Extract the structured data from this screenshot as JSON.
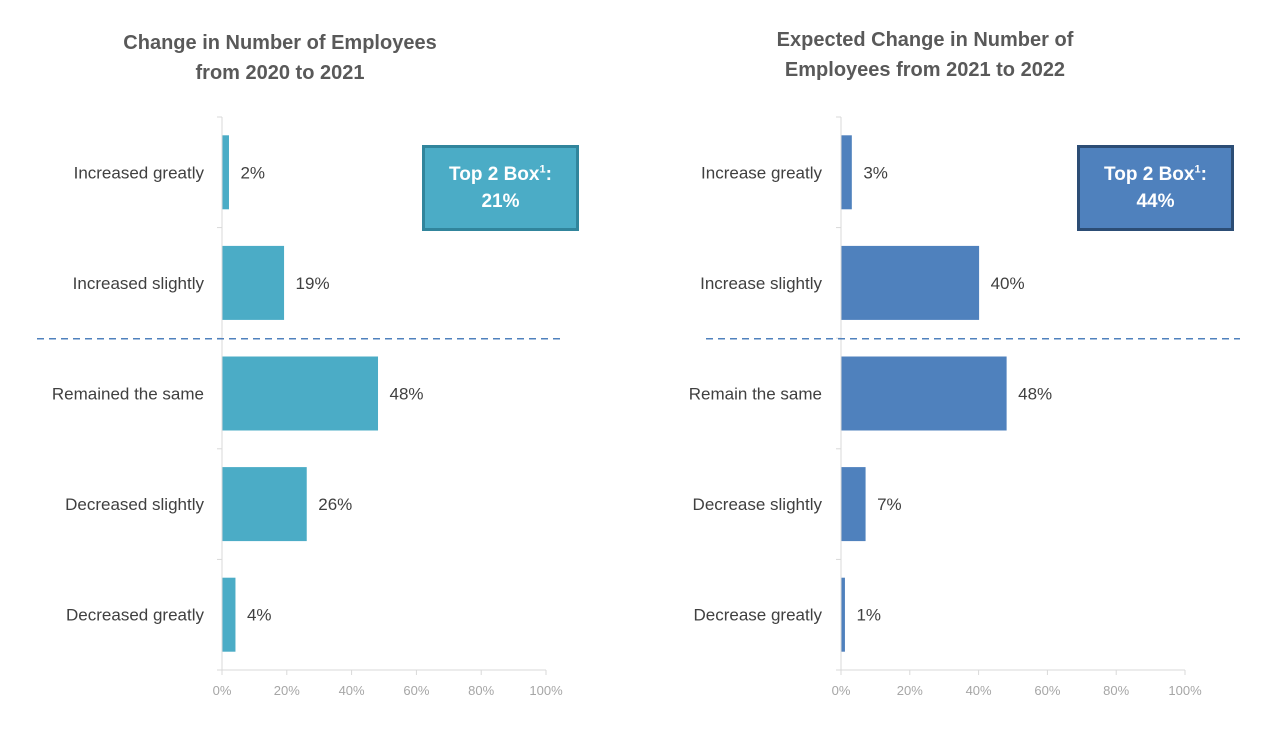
{
  "chart_data": [
    {
      "type": "bar",
      "orientation": "horizontal",
      "title_line1": "Change in Number of Employees",
      "title_line2": "from 2020 to 2021",
      "categories": [
        "Increased greatly",
        "Increased slightly",
        "Remained the same",
        "Decreased slightly",
        "Decreased greatly"
      ],
      "values": [
        2,
        19,
        48,
        26,
        4
      ],
      "value_labels": [
        "2%",
        "19%",
        "48%",
        "26%",
        "4%"
      ],
      "xlim": [
        0,
        100
      ],
      "xticks": [
        "0%",
        "20%",
        "40%",
        "60%",
        "80%",
        "100%"
      ],
      "bar_color": "#4bacc6",
      "callout": {
        "label": "Top 2 Box",
        "superscript": "1",
        "suffix": ":",
        "value": "21%",
        "fill": "#4bacc6",
        "border": "#31859c"
      }
    },
    {
      "type": "bar",
      "orientation": "horizontal",
      "title_line1": "Expected Change in Number of",
      "title_line2": "Employees from 2021 to 2022",
      "categories": [
        "Increase greatly",
        "Increase slightly",
        "Remain the same",
        "Decrease slightly",
        "Decrease greatly"
      ],
      "values": [
        3,
        40,
        48,
        7,
        1
      ],
      "value_labels": [
        "3%",
        "40%",
        "48%",
        "7%",
        "1%"
      ],
      "xlim": [
        0,
        100
      ],
      "xticks": [
        "0%",
        "20%",
        "40%",
        "60%",
        "80%",
        "100%"
      ],
      "bar_color": "#4f81bd",
      "callout": {
        "label": "Top 2 Box",
        "superscript": "1",
        "suffix": ":",
        "value": "44%",
        "fill": "#4f81bd",
        "border": "#2c4d75"
      }
    }
  ],
  "divider_color": "#4f81bd"
}
